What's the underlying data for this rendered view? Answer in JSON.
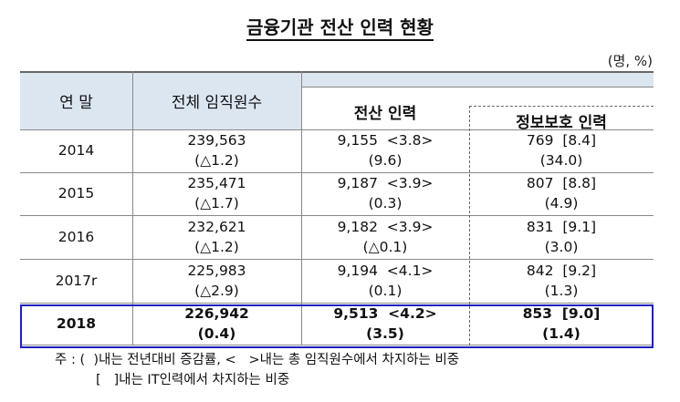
{
  "title": "금융기관 전산 인력 현황",
  "unit": "(명, %)",
  "headers": {
    "year": "연 말",
    "total": "전체 임직원수",
    "it": "전산 인력",
    "security": "정보보호 인력"
  },
  "rows": [
    {
      "year": "2014",
      "total": "239,563",
      "total_chg": "(△1.2)",
      "it": "9,155  <3.8>",
      "it_chg": "(9.6)",
      "sec": "769  [8.4]",
      "sec_chg": "(34.0)"
    },
    {
      "year": "2015",
      "total": "235,471",
      "total_chg": "(△1.7)",
      "it": "9,187  <3.9>",
      "it_chg": "(0.3)",
      "sec": "807  [8.8]",
      "sec_chg": "(4.9)"
    },
    {
      "year": "2016",
      "total": "232,621",
      "total_chg": "(△1.2)",
      "it": "9,182  <3.9>",
      "it_chg": "(△0.1)",
      "sec": "831  [9.1]",
      "sec_chg": "(3.0)"
    },
    {
      "year": "2017r",
      "total": "225,983",
      "total_chg": "(△2.9)",
      "it": "9,194  <4.1>",
      "it_chg": "(0.1)",
      "sec": "842  [9.2]",
      "sec_chg": "(1.3)"
    },
    {
      "year": "2018",
      "total": "226,942",
      "total_chg": "(0.4)",
      "it": "9,513  <4.2>",
      "it_chg": "(3.5)",
      "sec": "853  [9.0]",
      "sec_chg": "(1.4)"
    }
  ],
  "notes": [
    "주 : (  )내는 전년대비 증감률, <   >내는 총 임직원수에서 차지하는 비중",
    "[   ]내는 IT인력에서 차지하는 비중"
  ],
  "colors": {
    "header_bg": "#dce6f1",
    "highlight_border": "#1f1fbf"
  }
}
